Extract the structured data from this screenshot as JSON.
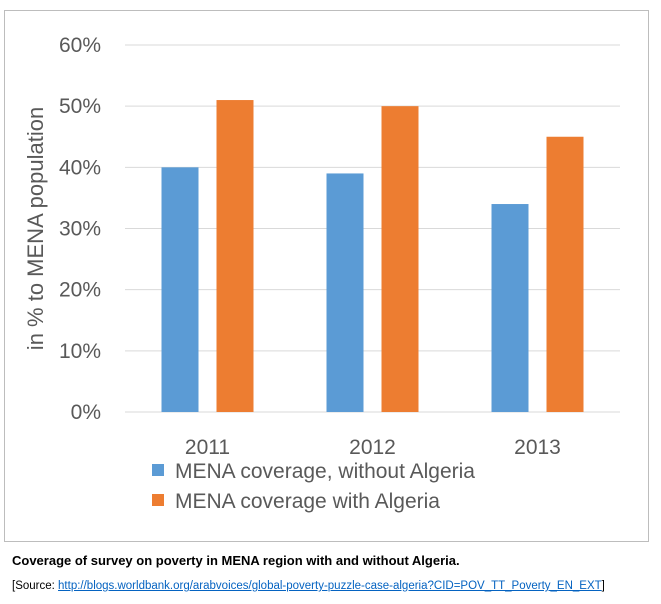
{
  "chart_data": {
    "type": "bar",
    "categories": [
      "2011",
      "2012",
      "2013"
    ],
    "series": [
      {
        "name": "MENA coverage, without Algeria",
        "values": [
          40,
          39,
          34
        ],
        "color": "#5b9bd5"
      },
      {
        "name": "MENA coverage with Algeria",
        "values": [
          51,
          50,
          45
        ],
        "color": "#ed7d31"
      }
    ],
    "ylabel": "in % to MENA population",
    "ylim": [
      0,
      60
    ],
    "yticks": [
      "0%",
      "10%",
      "20%",
      "30%",
      "40%",
      "50%",
      "60%"
    ],
    "grid": true,
    "legend_position": "bottom"
  },
  "caption": "Coverage of survey on poverty in MENA region with and without Algeria.",
  "source": {
    "prefix": "[Source: ",
    "link_text": "http://blogs.worldbank.org/arabvoices/global-poverty-puzzle-case-algeria?CID=POV_TT_Poverty_EN_EXT",
    "suffix": "]"
  }
}
